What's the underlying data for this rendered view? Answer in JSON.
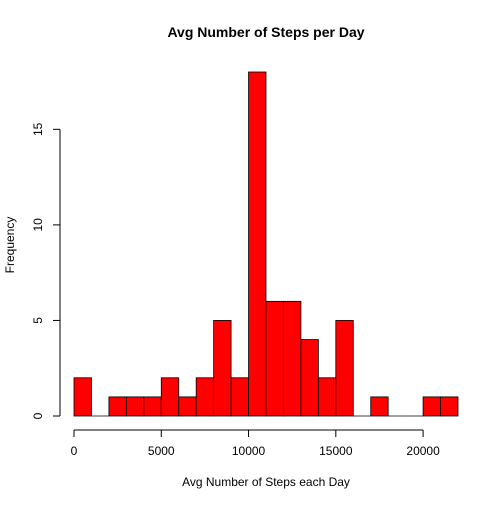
{
  "chart_data": {
    "type": "bar",
    "subtype": "histogram",
    "title": "Avg Number of Steps per Day",
    "xlabel": "Avg Number of Steps each Day",
    "ylabel": "Frequency",
    "bin_width": 1000,
    "bins": [
      {
        "x0": 0,
        "x1": 1000,
        "count": 2
      },
      {
        "x0": 1000,
        "x1": 2000,
        "count": 0
      },
      {
        "x0": 2000,
        "x1": 3000,
        "count": 1
      },
      {
        "x0": 3000,
        "x1": 4000,
        "count": 1
      },
      {
        "x0": 4000,
        "x1": 5000,
        "count": 1
      },
      {
        "x0": 5000,
        "x1": 6000,
        "count": 2
      },
      {
        "x0": 6000,
        "x1": 7000,
        "count": 1
      },
      {
        "x0": 7000,
        "x1": 8000,
        "count": 2
      },
      {
        "x0": 8000,
        "x1": 9000,
        "count": 5
      },
      {
        "x0": 9000,
        "x1": 10000,
        "count": 2
      },
      {
        "x0": 10000,
        "x1": 11000,
        "count": 18
      },
      {
        "x0": 11000,
        "x1": 12000,
        "count": 6
      },
      {
        "x0": 12000,
        "x1": 13000,
        "count": 6
      },
      {
        "x0": 13000,
        "x1": 14000,
        "count": 4
      },
      {
        "x0": 14000,
        "x1": 15000,
        "count": 2
      },
      {
        "x0": 15000,
        "x1": 16000,
        "count": 5
      },
      {
        "x0": 16000,
        "x1": 17000,
        "count": 0
      },
      {
        "x0": 17000,
        "x1": 18000,
        "count": 1
      },
      {
        "x0": 18000,
        "x1": 19000,
        "count": 0
      },
      {
        "x0": 19000,
        "x1": 20000,
        "count": 0
      },
      {
        "x0": 20000,
        "x1": 21000,
        "count": 1
      },
      {
        "x0": 21000,
        "x1": 22000,
        "count": 1
      }
    ],
    "xlim": [
      0,
      22000
    ],
    "ylim": [
      0,
      18
    ],
    "xticks": [
      0,
      5000,
      10000,
      15000,
      20000
    ],
    "yticks": [
      0,
      5,
      10,
      15
    ],
    "bar_fill": "#ff0000",
    "bar_stroke": "#000000",
    "grid": false,
    "legend": "none"
  }
}
